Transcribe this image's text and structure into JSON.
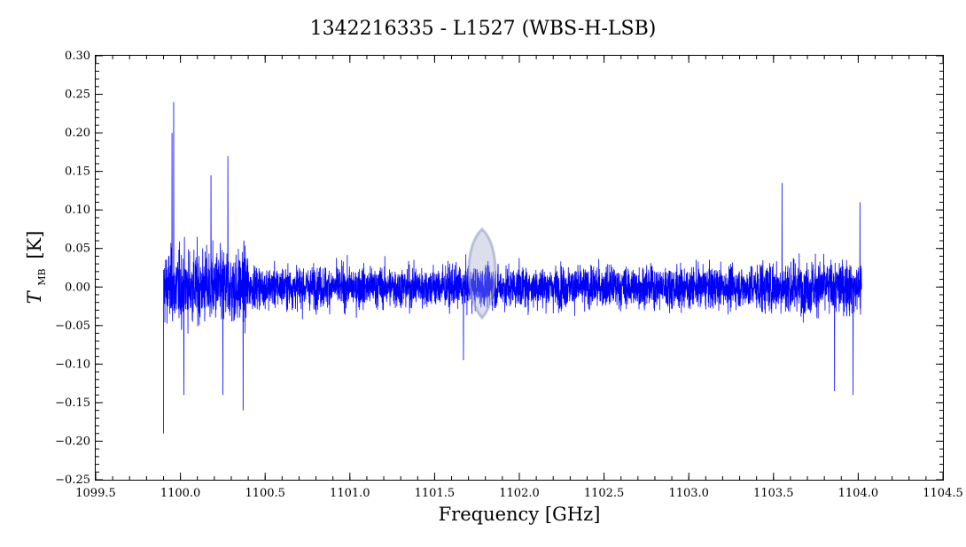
{
  "chart_data": {
    "type": "line",
    "title": "1342216335 - L1527 (WBS-H-LSB)",
    "xlabel": "Frequency [GHz]",
    "ylabel_main": "T",
    "ylabel_sub": "MB",
    "ylabel_unit": "[K]",
    "xlim": [
      1099.5,
      1104.5
    ],
    "ylim": [
      -0.25,
      0.3
    ],
    "x_ticks": [
      1099.5,
      1100.0,
      1100.5,
      1101.0,
      1101.5,
      1102.0,
      1102.5,
      1103.0,
      1103.5,
      1104.0,
      1104.5
    ],
    "x_tick_labels": [
      "1099.5",
      "1100.0",
      "1100.5",
      "1101.0",
      "1101.5",
      "1102.0",
      "1102.5",
      "1103.0",
      "1103.5",
      "1104.0",
      "1104.5"
    ],
    "y_ticks": [
      -0.25,
      -0.2,
      -0.15,
      -0.1,
      -0.05,
      0.0,
      0.05,
      0.1,
      0.15,
      0.2,
      0.25,
      0.3
    ],
    "y_tick_labels": [
      "−0.25",
      "−0.20",
      "−0.15",
      "−0.10",
      "−0.05",
      "0.00",
      "0.05",
      "0.10",
      "0.15",
      "0.20",
      "0.25",
      "0.30"
    ],
    "grid": false,
    "series": [
      {
        "color": "#0000ff",
        "x_start": 1099.9,
        "x_end": 1104.02,
        "features": [
          {
            "x": 1099.9,
            "y": -0.19
          },
          {
            "x": 1099.96,
            "y": 0.24
          },
          {
            "x": 1099.95,
            "y": 0.2
          },
          {
            "x": 1100.28,
            "y": 0.17
          },
          {
            "x": 1100.18,
            "y": 0.145
          },
          {
            "x": 1100.02,
            "y": -0.14
          },
          {
            "x": 1100.25,
            "y": -0.14
          },
          {
            "x": 1100.37,
            "y": -0.16
          },
          {
            "x": 1101.67,
            "y": -0.095
          },
          {
            "x": 1103.55,
            "y": 0.135
          },
          {
            "x": 1103.86,
            "y": -0.135
          },
          {
            "x": 1103.97,
            "y": -0.14
          },
          {
            "x": 1104.01,
            "y": 0.11
          }
        ]
      }
    ],
    "watermark": {
      "x": 1101.78,
      "y_top": 0.075,
      "y_bottom": -0.04,
      "color": "#9aa0c8"
    }
  }
}
